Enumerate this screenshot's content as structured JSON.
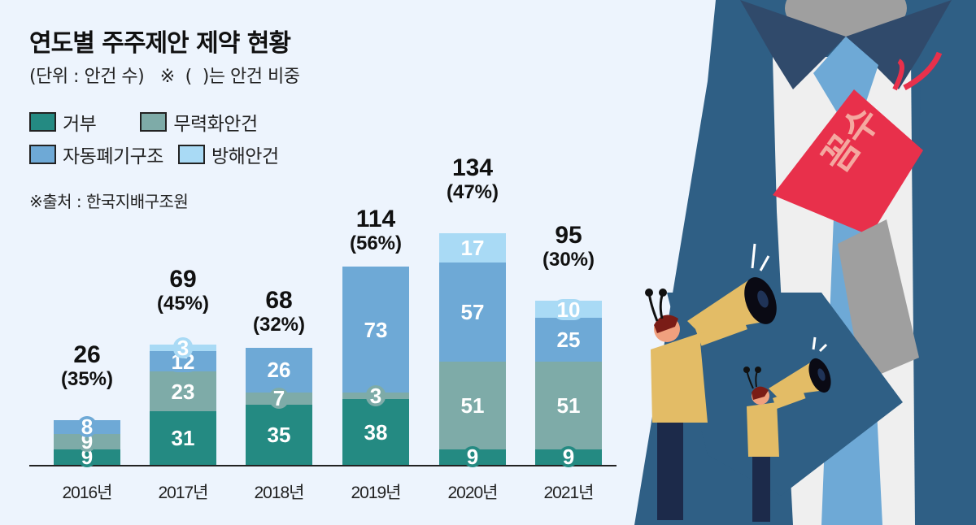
{
  "header": {
    "title": "연도별 주주제안 제약 현황",
    "subtitle": "(단위 : 안건 수)   ※  (  )는 안건 비중"
  },
  "legend": {
    "items": [
      {
        "label": "거부",
        "color": "#248a82"
      },
      {
        "label": "무력화안건",
        "color": "#7eaba8"
      },
      {
        "label": "자동폐기구조",
        "color": "#6ea9d6"
      },
      {
        "label": "방해안건",
        "color": "#a9daf5"
      }
    ]
  },
  "source": "※출처 : 한국지배구조원",
  "illustration": {
    "tag_text": "꼼수",
    "icon": "megaphone-icon"
  },
  "chart_data": {
    "type": "bar",
    "stacked": true,
    "title": "연도별 주주제안 제약 현황",
    "subtitle": "(단위 : 안건 수) ※ ( )는 안건 비중",
    "xlabel": "",
    "ylabel": "안건 수",
    "categories": [
      "2016년",
      "2017년",
      "2018년",
      "2019년",
      "2020년",
      "2021년"
    ],
    "series": [
      {
        "name": "거부",
        "color": "#248a82",
        "values": [
          9,
          31,
          35,
          38,
          9,
          9
        ]
      },
      {
        "name": "무력화안건",
        "color": "#7eaba8",
        "values": [
          9,
          23,
          7,
          3,
          51,
          51
        ]
      },
      {
        "name": "자동폐기구조",
        "color": "#6ea9d6",
        "values": [
          8,
          12,
          26,
          73,
          57,
          25
        ]
      },
      {
        "name": "방해안건",
        "color": "#a9daf5",
        "values": [
          0,
          3,
          0,
          0,
          17,
          10
        ]
      }
    ],
    "totals": [
      26,
      69,
      68,
      114,
      134,
      95
    ],
    "percentages": [
      "(35%)",
      "(45%)",
      "(32%)",
      "(56%)",
      "(47%)",
      "(30%)"
    ],
    "legend_position": "top-left",
    "grid": false,
    "source": "한국지배구조원"
  }
}
